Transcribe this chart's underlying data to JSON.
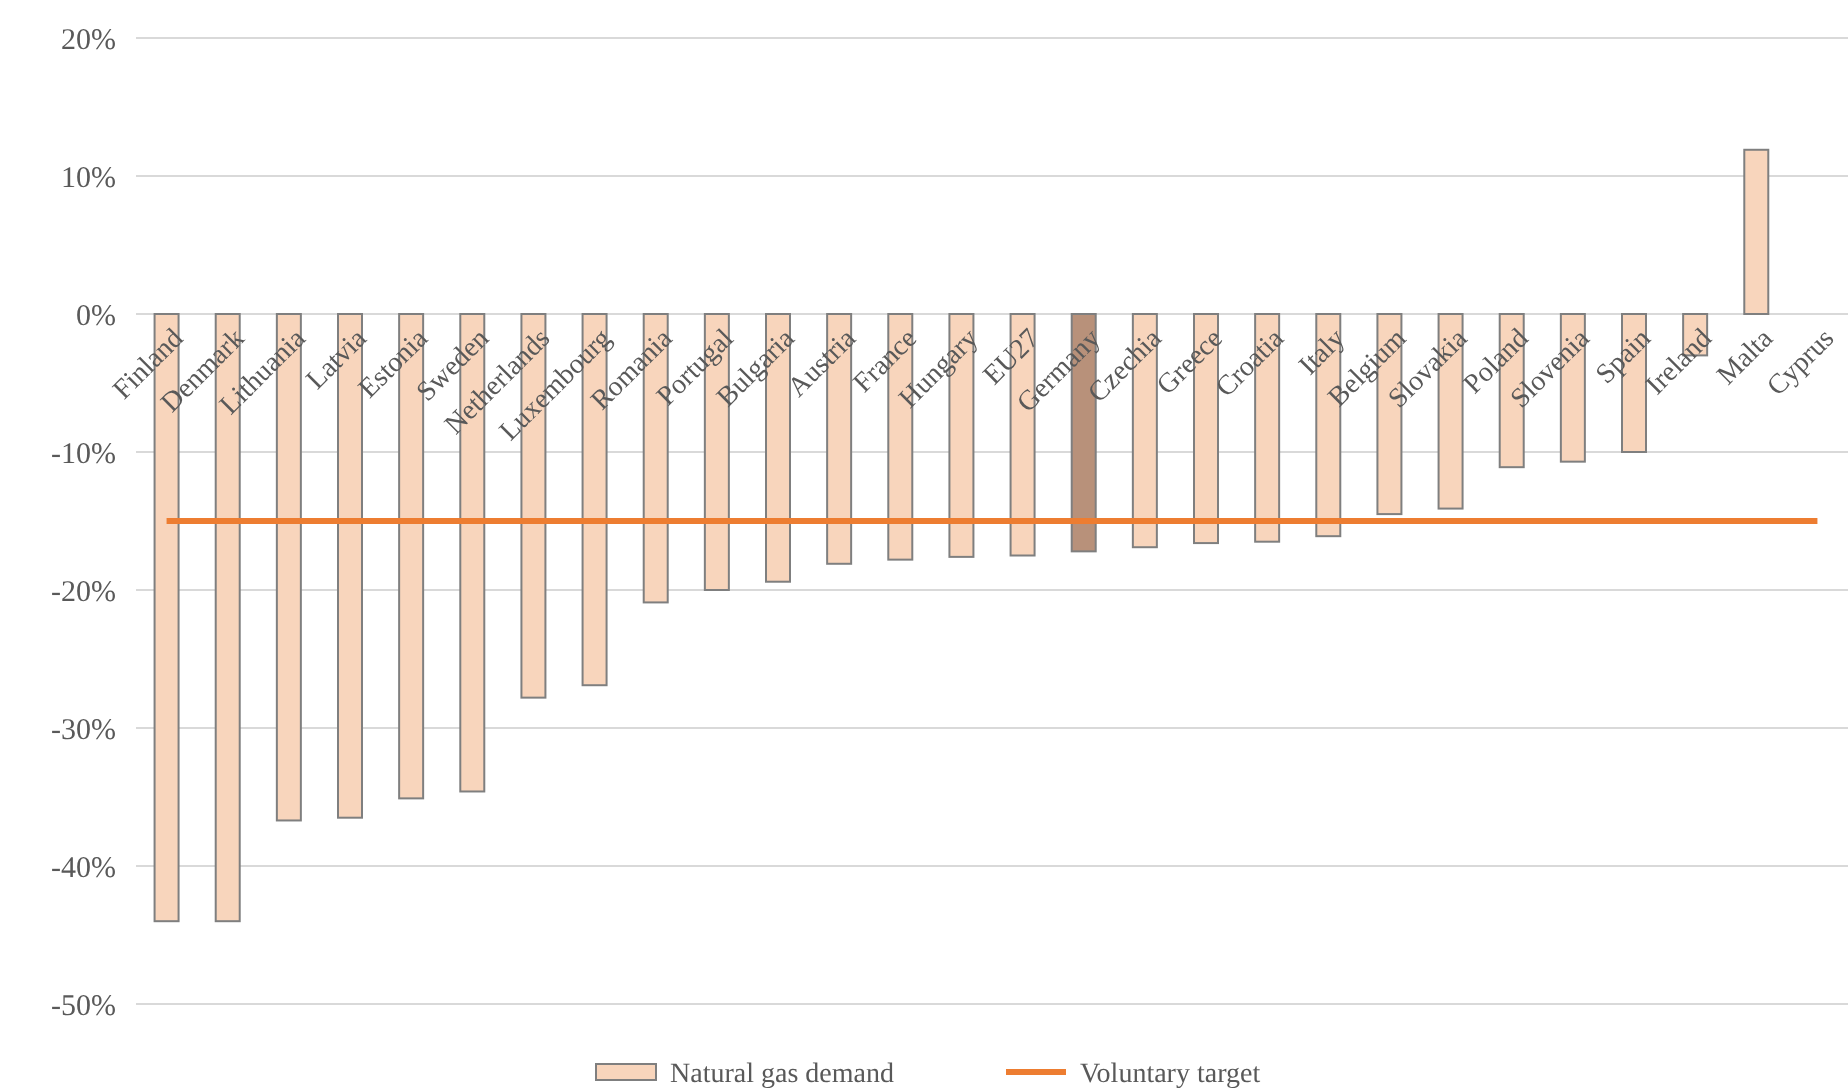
{
  "chart_data": {
    "type": "bar",
    "categories": [
      "Finland",
      "Denmark",
      "Lithuania",
      "Latvia",
      "Estonia",
      "Sweden",
      "Netherlands",
      "Luxembourg",
      "Romania",
      "Portugal",
      "Bulgaria",
      "Austria",
      "France",
      "Hungary",
      "EU27",
      "Germany",
      "Czechia",
      "Greece",
      "Croatia",
      "Italy",
      "Belgium",
      "Slovakia",
      "Poland",
      "Slovenia",
      "Spain",
      "Ireland",
      "Malta",
      "Cyprus"
    ],
    "series": [
      {
        "name": "Natural gas demand",
        "color": "#f8d5bc",
        "colors": [
          "#f8d5bc",
          "#f8d5bc",
          "#f8d5bc",
          "#f8d5bc",
          "#f8d5bc",
          "#f8d5bc",
          "#f8d5bc",
          "#f8d5bc",
          "#f8d5bc",
          "#f8d5bc",
          "#f8d5bc",
          "#f8d5bc",
          "#f8d5bc",
          "#f8d5bc",
          "#f8d5bc",
          "#b8917a",
          "#f8d5bc",
          "#f8d5bc",
          "#f8d5bc",
          "#f8d5bc",
          "#f8d5bc",
          "#f8d5bc",
          "#f8d5bc",
          "#f8d5bc",
          "#f8d5bc",
          "#f8d5bc",
          "#f8d5bc",
          "#f8d5bc"
        ],
        "values": [
          -44.0,
          -44.0,
          -36.7,
          -36.5,
          -35.1,
          -34.6,
          -27.8,
          -26.9,
          -20.9,
          -20.0,
          -19.4,
          -18.1,
          -17.8,
          -17.6,
          -17.5,
          -17.2,
          -16.9,
          -16.6,
          -16.5,
          -16.1,
          -14.5,
          -14.1,
          -11.1,
          -10.7,
          -10.0,
          -3.0,
          11.9,
          null
        ]
      },
      {
        "name": "Voluntary target",
        "type": "line",
        "color": "#ed7d31",
        "values": [
          -15,
          -15,
          -15,
          -15,
          -15,
          -15,
          -15,
          -15,
          -15,
          -15,
          -15,
          -15,
          -15,
          -15,
          -15,
          -15,
          -15,
          -15,
          -15,
          -15,
          -15,
          -15,
          -15,
          -15,
          -15,
          -15,
          -15,
          -15
        ]
      }
    ],
    "ylim": [
      -50,
      20
    ],
    "yticks": [
      {
        "value": -50,
        "label": "-50%"
      },
      {
        "value": -40,
        "label": "-40%"
      },
      {
        "value": -30,
        "label": "-30%"
      },
      {
        "value": -20,
        "label": "-20%"
      },
      {
        "value": -10,
        "label": "-10%"
      },
      {
        "value": 0,
        "label": "0%"
      },
      {
        "value": 10,
        "label": "10%"
      },
      {
        "value": 20,
        "label": "20%"
      }
    ],
    "grid": "y",
    "legend": "bottom"
  }
}
